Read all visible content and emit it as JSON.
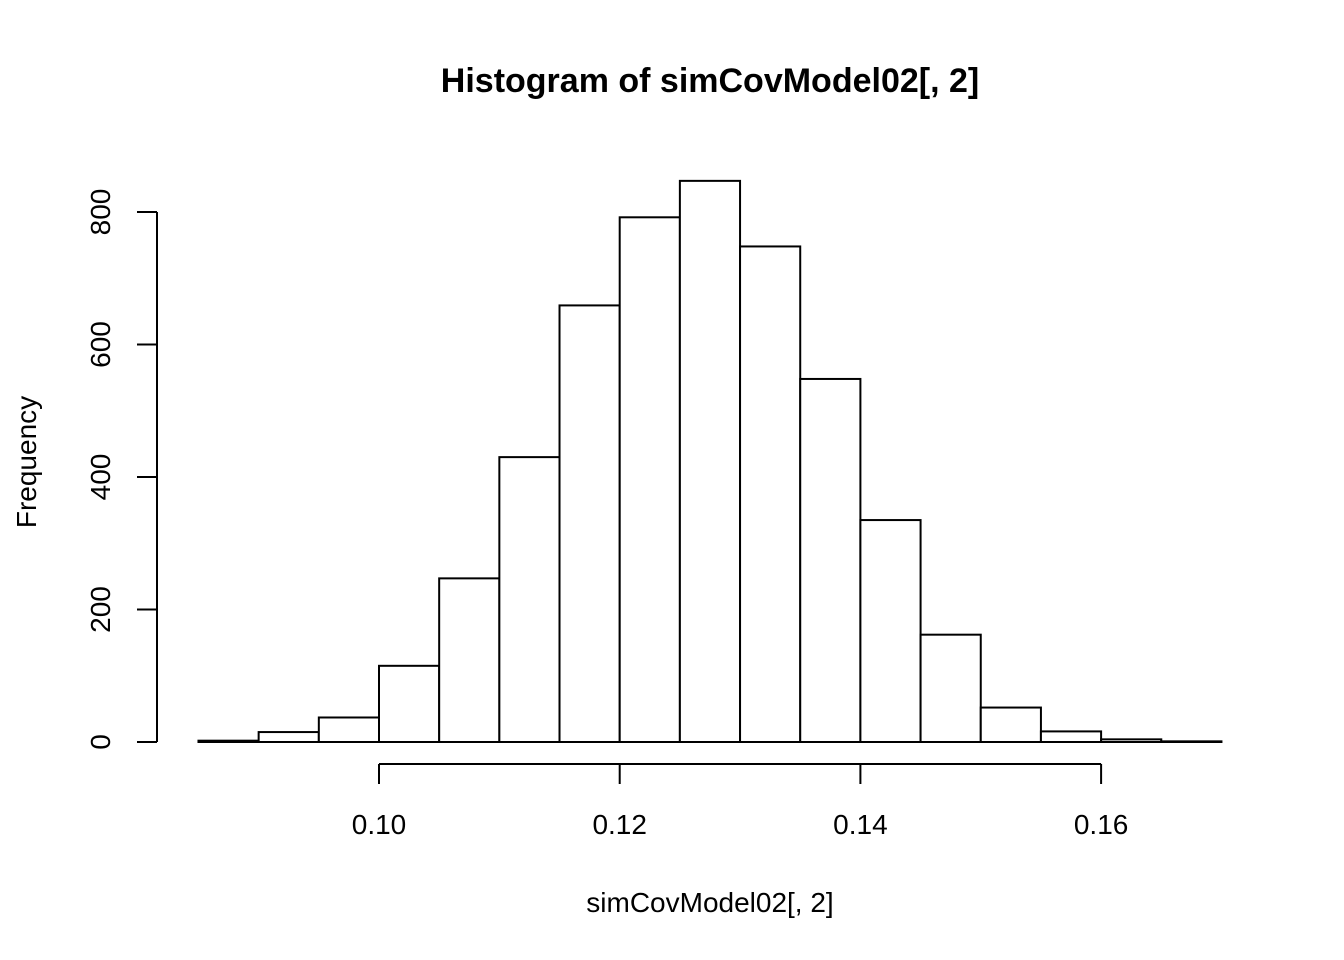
{
  "chart_data": {
    "type": "histogram",
    "title": "Histogram of simCovModel02[, 2]",
    "xlabel": "simCovModel02[, 2]",
    "ylabel": "Frequency",
    "bin_width": 0.005,
    "bins": [
      {
        "x0": 0.085,
        "x1": 0.09,
        "count": 2
      },
      {
        "x0": 0.09,
        "x1": 0.095,
        "count": 15
      },
      {
        "x0": 0.095,
        "x1": 0.1,
        "count": 37
      },
      {
        "x0": 0.1,
        "x1": 0.105,
        "count": 115
      },
      {
        "x0": 0.105,
        "x1": 0.11,
        "count": 247
      },
      {
        "x0": 0.11,
        "x1": 0.115,
        "count": 430
      },
      {
        "x0": 0.115,
        "x1": 0.12,
        "count": 659
      },
      {
        "x0": 0.12,
        "x1": 0.125,
        "count": 792
      },
      {
        "x0": 0.125,
        "x1": 0.13,
        "count": 847
      },
      {
        "x0": 0.13,
        "x1": 0.135,
        "count": 748
      },
      {
        "x0": 0.135,
        "x1": 0.14,
        "count": 548
      },
      {
        "x0": 0.14,
        "x1": 0.145,
        "count": 335
      },
      {
        "x0": 0.145,
        "x1": 0.15,
        "count": 162
      },
      {
        "x0": 0.15,
        "x1": 0.155,
        "count": 52
      },
      {
        "x0": 0.155,
        "x1": 0.16,
        "count": 16
      },
      {
        "x0": 0.16,
        "x1": 0.165,
        "count": 4
      },
      {
        "x0": 0.165,
        "x1": 0.17,
        "count": 1
      }
    ],
    "x_ticks": [
      {
        "value": 0.1,
        "label": "0.10"
      },
      {
        "value": 0.12,
        "label": "0.12"
      },
      {
        "value": 0.14,
        "label": "0.14"
      },
      {
        "value": 0.16,
        "label": "0.16"
      }
    ],
    "y_ticks": [
      {
        "value": 0,
        "label": "0"
      },
      {
        "value": 200,
        "label": "200"
      },
      {
        "value": 400,
        "label": "400"
      },
      {
        "value": 600,
        "label": "600"
      },
      {
        "value": 800,
        "label": "800"
      }
    ],
    "grid": false,
    "legend": "none",
    "bar_fill": "#ffffff",
    "bar_stroke": "#000000"
  }
}
